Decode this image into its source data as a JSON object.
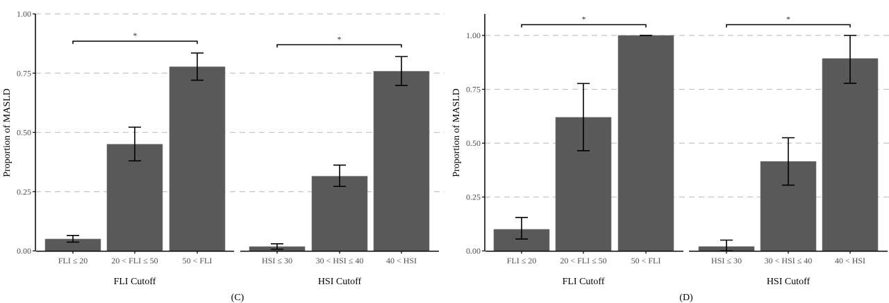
{
  "colors": {
    "bar": "#595959",
    "grid": "#c4c4c4",
    "axis": "#000000",
    "error": "#000000"
  },
  "chart_data": [
    {
      "type": "bar",
      "panel_label": "(C)",
      "ylabel": "Proportion of MASLD",
      "ylim": [
        0,
        1.0
      ],
      "yticks": [
        "0.00",
        "0.25",
        "0.50",
        "0.75",
        "1.00"
      ],
      "ytick_values": [
        0,
        0.25,
        0.5,
        0.75,
        1.0
      ],
      "grid": "horizontal-dashed",
      "facets": [
        {
          "xlabel": "FLI Cutoff",
          "categories": [
            "FLI ≤ 20",
            "20 < FLI ≤ 50",
            "50 < FLI"
          ],
          "values": [
            0.05,
            0.45,
            0.777
          ],
          "error_low": [
            0.037,
            0.38,
            0.72
          ],
          "error_high": [
            0.065,
            0.522,
            0.835
          ],
          "bracket": {
            "from": 0,
            "to": 2,
            "y": 0.885,
            "label": "*"
          }
        },
        {
          "xlabel": "HSI Cutoff",
          "categories": [
            "HSI ≤ 30",
            "30 < HSI ≤ 40",
            "40 < HSI"
          ],
          "values": [
            0.018,
            0.315,
            0.758
          ],
          "error_low": [
            0.007,
            0.272,
            0.698
          ],
          "error_high": [
            0.03,
            0.362,
            0.82
          ],
          "bracket": {
            "from": 0,
            "to": 2,
            "y": 0.87,
            "label": "*"
          }
        }
      ]
    },
    {
      "type": "bar",
      "panel_label": "(D)",
      "ylabel": "Proportion of MASLD",
      "ylim": [
        0,
        1.1
      ],
      "yticks": [
        "0.00",
        "0.25",
        "0.50",
        "0.75",
        "1.00"
      ],
      "ytick_values": [
        0,
        0.25,
        0.5,
        0.75,
        1.0
      ],
      "grid": "horizontal-dashed",
      "facets": [
        {
          "xlabel": "FLI Cutoff",
          "categories": [
            "FLI ≤ 20",
            "20 < FLI ≤ 50",
            "50 < FLI"
          ],
          "values": [
            0.1,
            0.62,
            1.0
          ],
          "error_low": [
            0.055,
            0.465,
            1.0
          ],
          "error_high": [
            0.155,
            0.777,
            1.0
          ],
          "bracket": {
            "from": 0,
            "to": 2,
            "y": 1.05,
            "label": "*"
          }
        },
        {
          "xlabel": "HSI Cutoff",
          "categories": [
            "HSI ≤ 30",
            "30 < HSI ≤ 40",
            "40 < HSI"
          ],
          "values": [
            0.02,
            0.415,
            0.893
          ],
          "error_low": [
            0.0,
            0.305,
            0.778
          ],
          "error_high": [
            0.05,
            0.525,
            1.0
          ],
          "bracket": {
            "from": 0,
            "to": 2,
            "y": 1.05,
            "label": "*"
          }
        }
      ]
    }
  ]
}
